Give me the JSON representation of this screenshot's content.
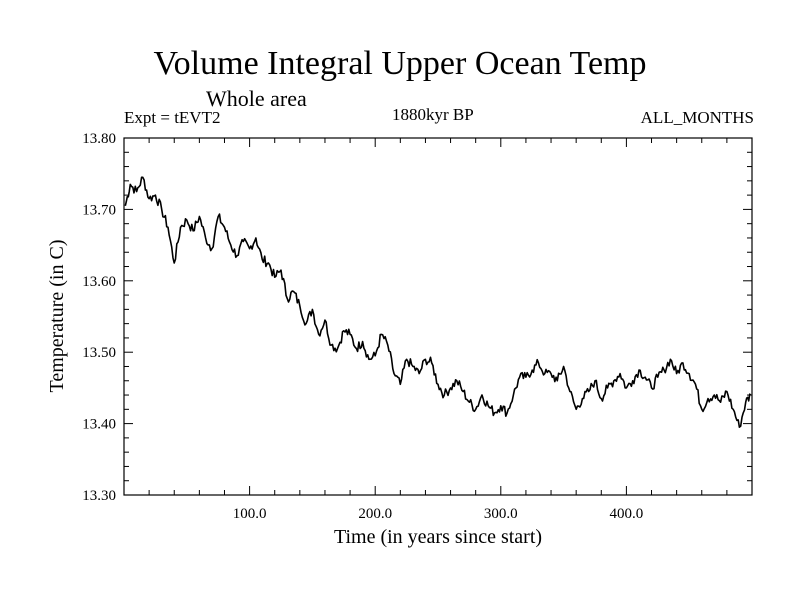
{
  "header": {
    "title": "Volume Integral Upper Ocean Temp",
    "subtitle": "Whole area",
    "experiment": "Expt = tEVT2",
    "period": "1880kyr BP",
    "months": "ALL_MONTHS"
  },
  "chart_data": {
    "type": "line",
    "title": "Volume Integral Upper Ocean Temp",
    "xlabel": "Time (in years since start)",
    "ylabel": "Temperature (in C)",
    "xlim": [
      0,
      500
    ],
    "ylim": [
      13.3,
      13.8
    ],
    "xticks": [
      100,
      200,
      300,
      400
    ],
    "xtick_labels": [
      "100.0",
      "200.0",
      "300.0",
      "400.0"
    ],
    "yticks": [
      13.3,
      13.4,
      13.5,
      13.6,
      13.7,
      13.8
    ],
    "ytick_labels": [
      "13.30",
      "13.40",
      "13.50",
      "13.60",
      "13.70",
      "13.80"
    ],
    "grid": false,
    "series": [
      {
        "name": "Volume Integral Upper Ocean Temp",
        "x": [
          1,
          5,
          10,
          15,
          20,
          25,
          30,
          35,
          40,
          45,
          50,
          55,
          60,
          65,
          70,
          75,
          80,
          85,
          90,
          95,
          100,
          105,
          110,
          115,
          120,
          125,
          130,
          135,
          140,
          145,
          150,
          155,
          160,
          165,
          170,
          175,
          180,
          185,
          190,
          195,
          200,
          205,
          210,
          215,
          220,
          225,
          230,
          235,
          240,
          245,
          250,
          255,
          260,
          265,
          270,
          275,
          280,
          285,
          290,
          295,
          300,
          305,
          310,
          315,
          320,
          325,
          330,
          335,
          340,
          345,
          350,
          355,
          360,
          365,
          370,
          375,
          380,
          385,
          390,
          395,
          400,
          405,
          410,
          415,
          420,
          425,
          430,
          435,
          440,
          445,
          450,
          455,
          460,
          465,
          470,
          475,
          480,
          485,
          490,
          495,
          499
        ],
        "values": [
          13.705,
          13.735,
          13.725,
          13.745,
          13.715,
          13.72,
          13.7,
          13.675,
          13.625,
          13.675,
          13.685,
          13.67,
          13.69,
          13.66,
          13.645,
          13.69,
          13.675,
          13.65,
          13.635,
          13.655,
          13.645,
          13.66,
          13.63,
          13.625,
          13.605,
          13.615,
          13.575,
          13.585,
          13.565,
          13.54,
          13.56,
          13.525,
          13.545,
          13.51,
          13.505,
          13.53,
          13.525,
          13.505,
          13.515,
          13.49,
          13.495,
          13.525,
          13.51,
          13.47,
          13.455,
          13.49,
          13.48,
          13.47,
          13.49,
          13.485,
          13.455,
          13.44,
          13.45,
          13.46,
          13.445,
          13.43,
          13.42,
          13.44,
          13.425,
          13.415,
          13.425,
          13.415,
          13.44,
          13.465,
          13.465,
          13.475,
          13.485,
          13.47,
          13.47,
          13.46,
          13.48,
          13.445,
          13.42,
          13.435,
          13.445,
          13.46,
          13.435,
          13.45,
          13.46,
          13.47,
          13.45,
          13.46,
          13.475,
          13.465,
          13.45,
          13.465,
          13.475,
          13.49,
          13.47,
          13.485,
          13.47,
          13.455,
          13.42,
          13.435,
          13.44,
          13.43,
          13.445,
          13.42,
          13.395,
          13.43,
          13.44
        ]
      }
    ]
  }
}
